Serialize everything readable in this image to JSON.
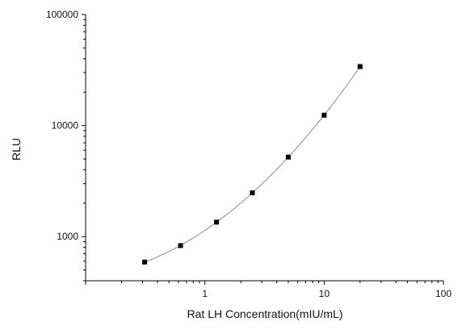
{
  "chart_data": {
    "type": "scatter",
    "title": "",
    "xlabel": "Rat LH Concentration(mIU/mL)",
    "ylabel": "RLU",
    "xscale": "log",
    "yscale": "log",
    "xlim": [
      0.1,
      100
    ],
    "ylim": [
      400,
      100000
    ],
    "grid": false,
    "fit_line": true,
    "x_ticks": [
      {
        "value": 1,
        "label": "1"
      },
      {
        "value": 10,
        "label": "10"
      },
      {
        "value": 100,
        "label": "100"
      }
    ],
    "y_ticks": [
      {
        "value": 1000,
        "label": "1000"
      },
      {
        "value": 10000,
        "label": "10000"
      },
      {
        "value": 100000,
        "label": "100000"
      }
    ],
    "series": [
      {
        "x": [
          0.3125,
          0.625,
          1.25,
          2.5,
          5,
          10,
          20
        ],
        "y": [
          590,
          830,
          1350,
          2480,
          5200,
          12400,
          34000
        ]
      }
    ],
    "colors": {
      "marker": "#000000",
      "line": "#8a8a8a",
      "axis": "#000000"
    }
  }
}
